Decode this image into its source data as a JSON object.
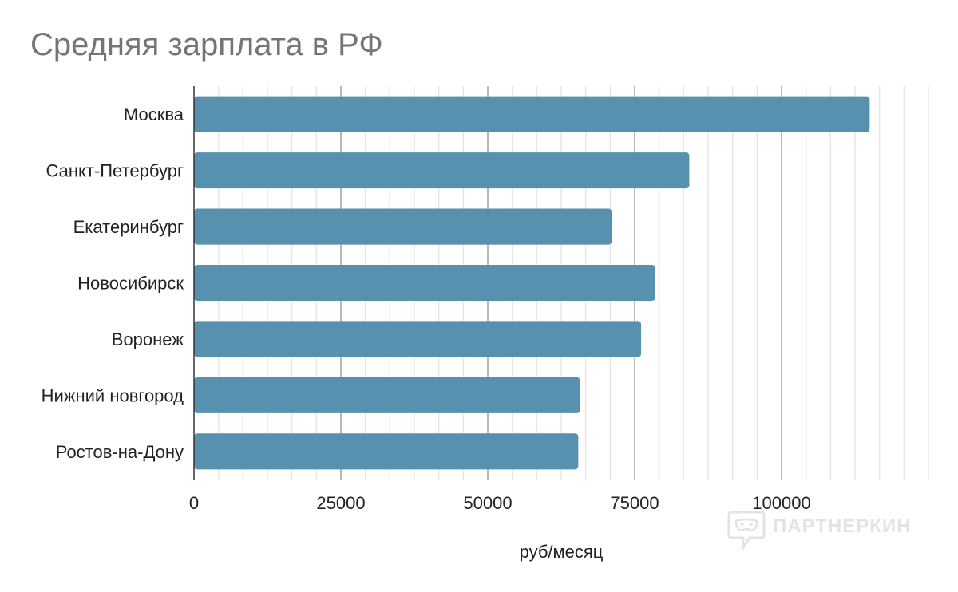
{
  "chart_data": {
    "type": "bar",
    "orientation": "horizontal",
    "title": "Средняя зарплата в РФ",
    "xlabel": "руб/месяц",
    "ylabel": "",
    "categories": [
      "Москва",
      "Санкт-Петербург",
      "Екатеринбург",
      "Новосибирск",
      "Воронеж",
      "Нижний новгород",
      "Ростов-на-Дону"
    ],
    "values": [
      115000,
      84300,
      71100,
      78500,
      76100,
      65700,
      65400
    ],
    "xlim": [
      0,
      125000
    ],
    "xticks": [
      0,
      25000,
      50000,
      75000,
      100000
    ],
    "xtick_labels": [
      "0",
      "25000",
      "50000",
      "75000",
      "100000"
    ],
    "major_step": 25000,
    "minor_step": 4166.67,
    "grid": true,
    "legend": "none",
    "bar_color": "#5891af",
    "major_grid_color": "#b7b7b7",
    "minor_grid_color": "#e6e6e6"
  },
  "watermark": {
    "text": "ПАРТНЕРКИН",
    "icon": "speech-bubble-mask-icon"
  }
}
